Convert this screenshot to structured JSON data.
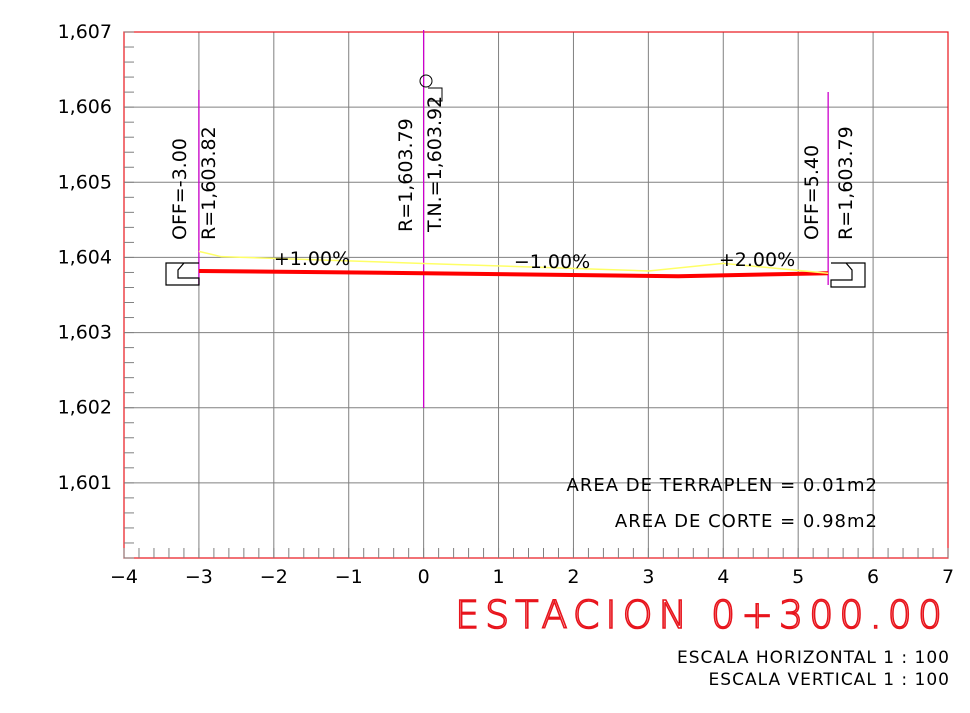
{
  "y_axis": {
    "ticks": [
      "1,607",
      "1,606",
      "1,605",
      "1,604",
      "1,603",
      "1,602",
      "1,601"
    ]
  },
  "x_axis": {
    "ticks": [
      "-4",
      "-3",
      "-2",
      "-1",
      "0",
      "1",
      "2",
      "3",
      "4",
      "5",
      "6",
      "7"
    ]
  },
  "offsets": [
    {
      "x": -3.0,
      "off_label": "OFF=-3.00",
      "r_label": "R=1,603.82"
    },
    {
      "x": 0.0,
      "off_label": "",
      "r_label": "R=1,603.79",
      "tn_label": "T.N.=1,603.92"
    },
    {
      "x": 5.4,
      "off_label": "OFF=5.40",
      "r_label": "R=1,603.79"
    }
  ],
  "slopes": [
    "+1.00%",
    "-1.00%",
    "+2.00%"
  ],
  "areas": {
    "terraplen": "AREA DE TERRAPLEN = 0.01m2",
    "corte": "AREA DE CORTE = 0.98m2"
  },
  "title": "ESTACION 0+300.00",
  "scale_h": "ESCALA HORIZONTAL 1 : 100",
  "scale_v": "ESCALA VERTICAL 1 : 100",
  "colors": {
    "frame": "#e8141c",
    "grid": "#808080",
    "design": "#ff0000",
    "terrain": "#ffff66",
    "marker": "#cc00cc",
    "title": "#e8141c"
  },
  "chart_data": {
    "type": "line",
    "xlim": [
      -4,
      7
    ],
    "ylim": [
      1600.0,
      1607.0
    ],
    "series": [
      {
        "name": "",
        "x": [
          -3.0,
          0.0,
          3.4,
          5.4
        ],
        "y": [
          1603.82,
          1603.79,
          1603.75,
          1603.79
        ]
      },
      {
        "name": "",
        "x": [
          -3.0,
          -2.7,
          0.0,
          3.0,
          4.0,
          5.4
        ],
        "y": [
          1604.08,
          1604.01,
          1603.92,
          1603.82,
          1603.92,
          1603.79
        ]
      }
    ]
  }
}
